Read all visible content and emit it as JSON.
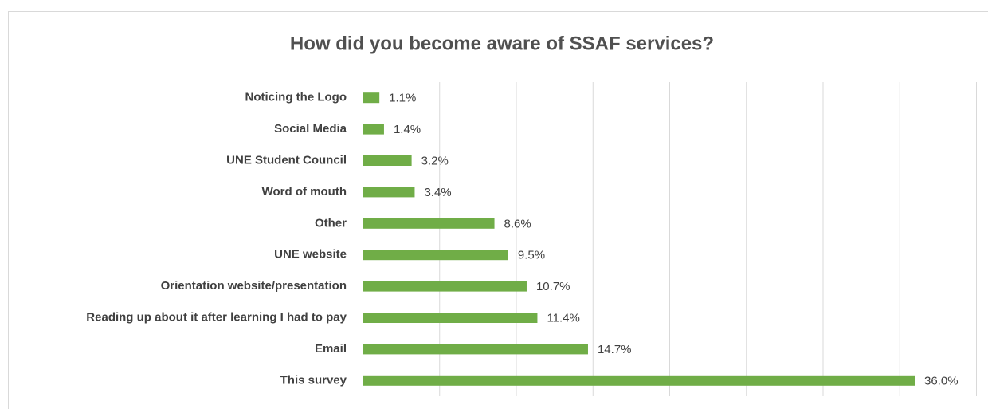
{
  "chart_data": {
    "type": "bar",
    "orientation": "horizontal",
    "title": "How did you become aware of SSAF services?",
    "categories": [
      "Noticing the Logo",
      "Social Media",
      "UNE Student Council",
      "Word of mouth",
      "Other",
      "UNE website",
      "Orientation website/presentation",
      "Reading up about it after learning I had to pay",
      "Email",
      "This survey"
    ],
    "values": [
      1.1,
      1.4,
      3.2,
      3.4,
      8.6,
      9.5,
      10.7,
      11.4,
      14.7,
      36.0
    ],
    "value_labels": [
      "1.1%",
      "1.4%",
      "3.2%",
      "3.4%",
      "8.6%",
      "9.5%",
      "10.7%",
      "11.4%",
      "14.7%",
      "36.0%"
    ],
    "color": "#70ad47",
    "xlim": [
      0,
      40
    ],
    "xticks": [
      0,
      5,
      10,
      15,
      20,
      25,
      30,
      35,
      40
    ],
    "grid": true
  }
}
